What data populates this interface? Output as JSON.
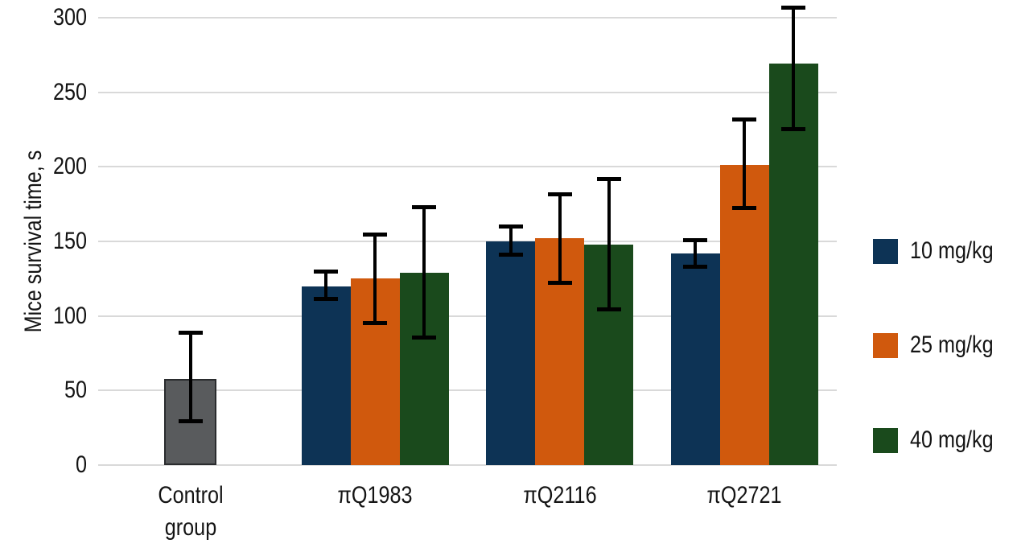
{
  "figure": {
    "background": "#ffffff",
    "text_color": "#141414",
    "gridline_color": "#d9d9d9"
  },
  "chart_data": {
    "type": "bar",
    "title": "",
    "ylabel": "Mice survival time, s",
    "xlabel": "",
    "ylim": [
      0,
      300
    ],
    "yticks": [
      0,
      50,
      100,
      150,
      200,
      250,
      300
    ],
    "grid": "horizontal-gridlines",
    "legend_position": "right",
    "error_bars": true,
    "error_bar_color": "#000000",
    "categories": [
      "Control group",
      "πQ1983",
      "πQ2116",
      "πQ2721"
    ],
    "control": {
      "label": "Control group",
      "color": "#595b5d",
      "border_color": "#2a2c2e",
      "value": 58,
      "error_low": 29,
      "error_high": 89
    },
    "series": [
      {
        "name": "10 mg/kg",
        "color": "#0d3355",
        "values": [
          null,
          120,
          150,
          142
        ],
        "error_low": [
          null,
          111,
          141,
          133
        ],
        "error_high": [
          null,
          130,
          160,
          151
        ]
      },
      {
        "name": "25 mg/kg",
        "color": "#d0590d",
        "values": [
          null,
          125,
          152,
          201
        ],
        "error_low": [
          null,
          95,
          122,
          172
        ],
        "error_high": [
          null,
          155,
          182,
          232
        ]
      },
      {
        "name": "40 mg/kg",
        "color": "#1a4a1c",
        "values": [
          null,
          129,
          148,
          269
        ],
        "error_low": [
          null,
          85,
          104,
          225
        ],
        "error_high": [
          null,
          173,
          192,
          307
        ]
      }
    ]
  }
}
